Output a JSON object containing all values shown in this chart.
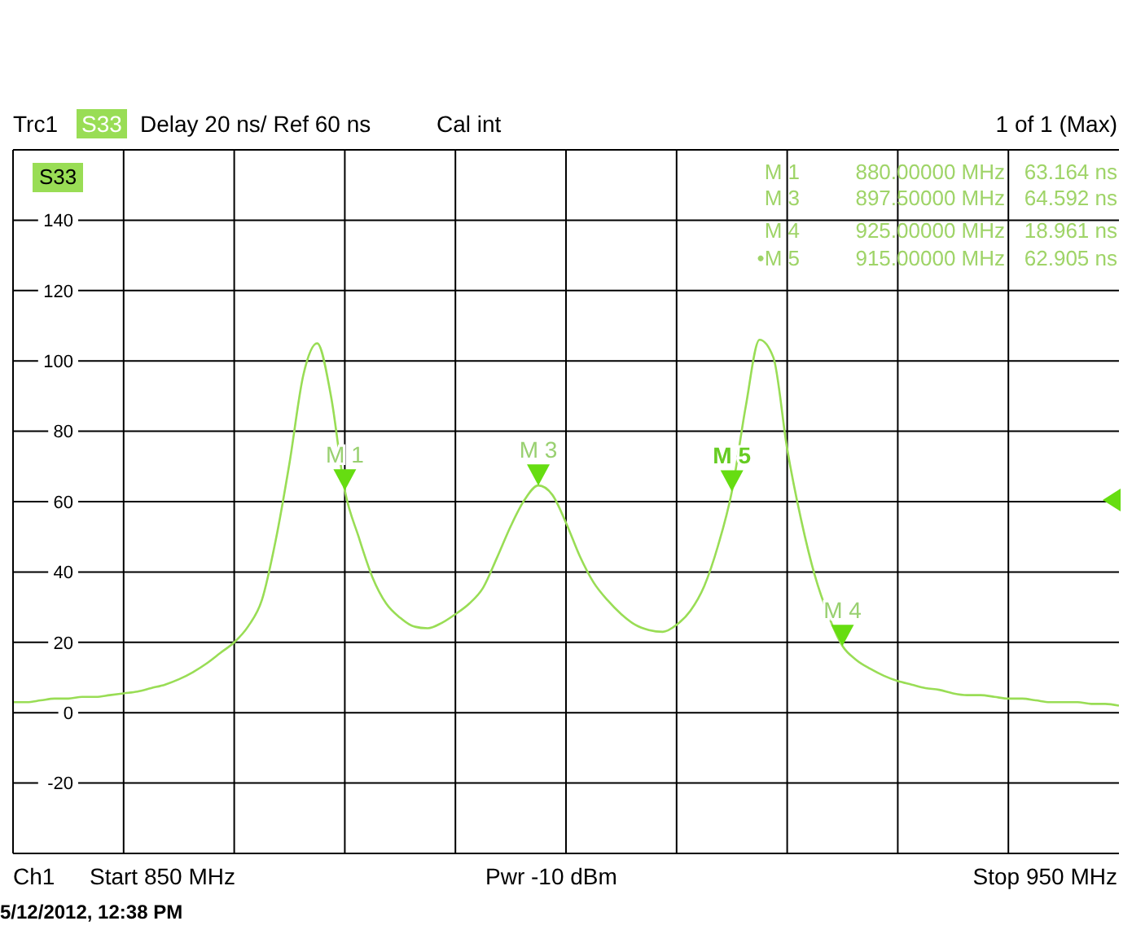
{
  "chart_data": {
    "type": "line",
    "annotations": [
      "Trc1",
      "Delay 20 ns/ Ref 60 ns",
      "Cal int",
      "1 of 1 (Max)",
      "M 1 880.00000 MHz 63.164 ns",
      "M 3 897.50000 MHz 64.592 ns",
      "M 4 925.00000 MHz 18.961 ns",
      "•M 5 915.00000 MHz 62.905 ns",
      "Ch1",
      "Start 850 MHz",
      "Pwr -10 dBm",
      "Stop 950 MHz",
      "5/12/2012, 12:38 PM",
      {
        "text": "M 1",
        "y": 63.164
      },
      {
        "text": "M 3",
        "y": 64.592
      },
      {
        "text": "M 4",
        "y": 18.961
      },
      {
        "text": "M 5",
        "y": 62.905
      }
    ],
    "categories": [
      null,
      null,
      null,
      null,
      null,
      null,
      null,
      null,
      null,
      null,
      null,
      null,
      null,
      null,
      null,
      null,
      null,
      null,
      null,
      null,
      null,
      null,
      null,
      null,
      null,
      null,
      null,
      null,
      null,
      null,
      null,
      null,
      null,
      null,
      null,
      null,
      null,
      null,
      null,
      null,
      null,
      null,
      null,
      null,
      null,
      null,
      null,
      null,
      null,
      null,
      null,
      null,
      null,
      null,
      null,
      null,
      null,
      null,
      null,
      null,
      null,
      null,
      null,
      null,
      null,
      null,
      null,
      null,
      null,
      null,
      null,
      null,
      null,
      null,
      null,
      null,
      null,
      null,
      null,
      null,
      null
    ],
    "series": [
      {
        "name": "S33",
        "color": "#99dd55",
        "values": [
          3,
          3,
          3.5,
          4,
          4,
          4.5,
          4.5,
          5,
          5.5,
          6,
          7,
          8,
          9.5,
          11.5,
          14,
          17,
          20,
          24.5,
          32,
          49,
          71,
          96,
          105,
          90,
          63.164,
          50,
          38.5,
          31,
          27,
          24.5,
          24,
          25.5,
          28,
          31,
          35.5,
          44,
          53,
          60.5,
          64.592,
          62,
          54,
          44.5,
          37,
          32,
          28,
          25,
          23.5,
          23,
          25,
          29,
          36,
          47.5,
          62.905,
          87,
          106,
          101,
          75,
          55,
          39,
          27.5,
          18.961,
          15,
          12.5,
          10.5,
          9,
          8,
          7,
          6.5,
          5.5,
          5,
          5,
          4.5,
          4,
          4,
          3.5,
          3,
          3,
          3,
          2.5,
          2.5,
          2
        ]
      }
    ],
    "ylim": [
      -40,
      160
    ],
    "yticks": [
      -20,
      0,
      20,
      40,
      60,
      80,
      100,
      120,
      140
    ],
    "grid": true,
    "legend": "top left",
    "tick_labels": "y"
  }
}
